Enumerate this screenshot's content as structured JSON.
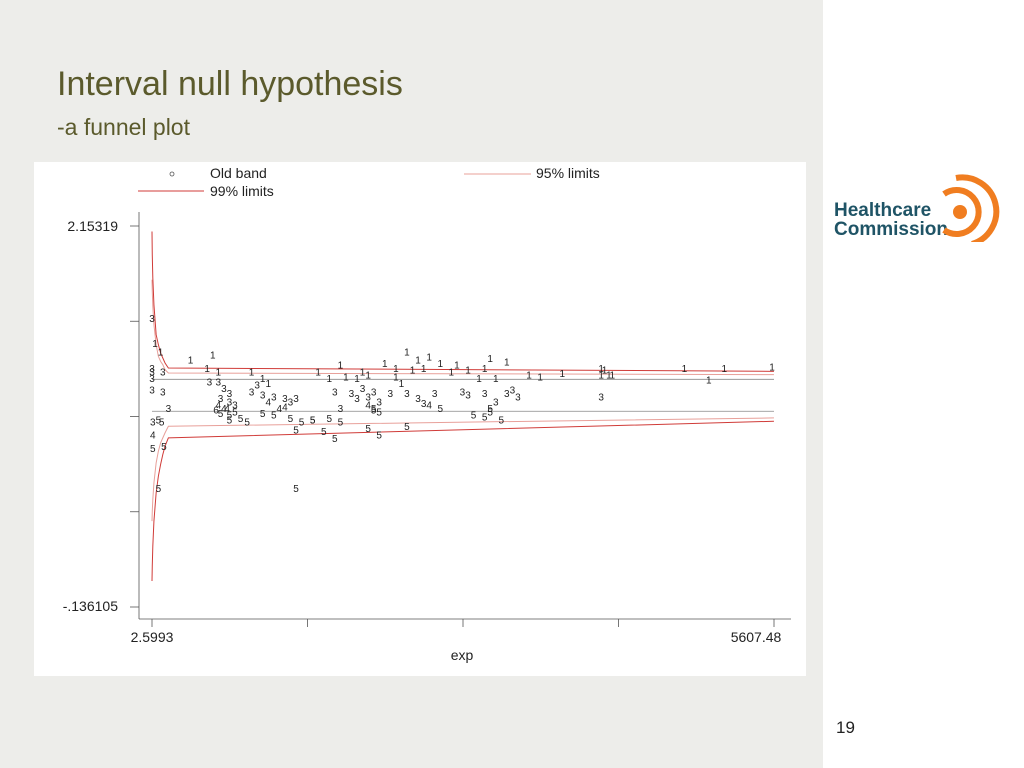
{
  "slide": {
    "title": "Interval null hypothesis",
    "subtitle": "-a funnel plot",
    "page_number": "19"
  },
  "logo": {
    "line1": "Healthcare",
    "line2": "Commission",
    "colors": {
      "text": "#1f5466",
      "ring": "#f07d20"
    }
  },
  "colors": {
    "title": "#5b5a2c",
    "background": "#ededea",
    "limit95": "#e8a09a",
    "limit99": "#d03b38",
    "band": "#888888"
  },
  "chart_data": {
    "type": "scatter",
    "marker_type": "text",
    "xlabel": "exp",
    "x_ticks": [
      "2.5993",
      "5607.48"
    ],
    "y_ticks": [
      "2.15319",
      "-.136105"
    ],
    "xlim": [
      2.5993,
      5607.48
    ],
    "ylim": [
      -0.136105,
      2.15319
    ],
    "legend": {
      "placement": "top",
      "entries": [
        {
          "label": "Old band",
          "marker": "circle"
        },
        {
          "label": "95% limits",
          "line": "limit95"
        },
        {
          "label": "99% limits",
          "line": "limit99"
        }
      ]
    },
    "band": {
      "upper": 1.232,
      "lower": 1.04
    },
    "limits95": {
      "x": [
        2.6,
        5,
        10,
        20,
        40,
        60,
        80,
        100,
        120,
        150,
        5607
      ],
      "upper": [
        1.83,
        1.76,
        1.67,
        1.56,
        1.44,
        1.37,
        1.34,
        1.32,
        1.29,
        1.27,
        1.26
      ],
      "lower": [
        0.38,
        0.44,
        0.51,
        0.61,
        0.73,
        0.8,
        0.85,
        0.88,
        0.91,
        0.95,
        1.0
      ]
    },
    "limits99": {
      "x": [
        2.6,
        5,
        10,
        20,
        40,
        60,
        80,
        100,
        120,
        150,
        5607
      ],
      "upper": [
        2.12,
        1.98,
        1.84,
        1.68,
        1.5,
        1.44,
        1.39,
        1.36,
        1.33,
        1.3,
        1.28
      ],
      "lower": [
        0.02,
        0.11,
        0.23,
        0.38,
        0.55,
        0.65,
        0.72,
        0.78,
        0.83,
        0.88,
        0.98
      ]
    },
    "points": [
      {
        "x": 2.6,
        "y": 1.6,
        "label": "3"
      },
      {
        "x": 2.6,
        "y": 1.3,
        "label": "3"
      },
      {
        "x": 2.6,
        "y": 1.28,
        "label": "3"
      },
      {
        "x": 2.6,
        "y": 1.24,
        "label": "3"
      },
      {
        "x": 2.6,
        "y": 1.17,
        "label": "3"
      },
      {
        "x": 30,
        "y": 1.45,
        "label": "1"
      },
      {
        "x": 80,
        "y": 1.4,
        "label": "1"
      },
      {
        "x": 100,
        "y": 1.28,
        "label": "3"
      },
      {
        "x": 100,
        "y": 1.16,
        "label": "3"
      },
      {
        "x": 150,
        "y": 1.06,
        "label": "3"
      },
      {
        "x": 10,
        "y": 0.98,
        "label": "3"
      },
      {
        "x": 60,
        "y": 0.99,
        "label": "5"
      },
      {
        "x": 90,
        "y": 0.98,
        "label": "5"
      },
      {
        "x": 10,
        "y": 0.9,
        "label": "4"
      },
      {
        "x": 10,
        "y": 0.82,
        "label": "5"
      },
      {
        "x": 110,
        "y": 0.83,
        "label": "5"
      },
      {
        "x": 60,
        "y": 0.58,
        "label": "5"
      },
      {
        "x": 350,
        "y": 1.35,
        "label": "1"
      },
      {
        "x": 500,
        "y": 1.3,
        "label": "1"
      },
      {
        "x": 550,
        "y": 1.38,
        "label": "1"
      },
      {
        "x": 600,
        "y": 1.28,
        "label": "1"
      },
      {
        "x": 520,
        "y": 1.22,
        "label": "3"
      },
      {
        "x": 600,
        "y": 1.22,
        "label": "3"
      },
      {
        "x": 650,
        "y": 1.18,
        "label": "3"
      },
      {
        "x": 700,
        "y": 1.15,
        "label": "3"
      },
      {
        "x": 620,
        "y": 1.12,
        "label": "3"
      },
      {
        "x": 700,
        "y": 1.1,
        "label": "3"
      },
      {
        "x": 750,
        "y": 1.08,
        "label": "3"
      },
      {
        "x": 600,
        "y": 1.08,
        "label": "4"
      },
      {
        "x": 650,
        "y": 1.06,
        "label": "4"
      },
      {
        "x": 680,
        "y": 1.06,
        "label": "4"
      },
      {
        "x": 620,
        "y": 1.03,
        "label": "5"
      },
      {
        "x": 580,
        "y": 1.05,
        "label": "6"
      },
      {
        "x": 700,
        "y": 1.02,
        "label": "5"
      },
      {
        "x": 750,
        "y": 1.04,
        "label": "5"
      },
      {
        "x": 800,
        "y": 1.0,
        "label": "5"
      },
      {
        "x": 860,
        "y": 0.98,
        "label": "5"
      },
      {
        "x": 700,
        "y": 0.99,
        "label": "5"
      },
      {
        "x": 900,
        "y": 1.28,
        "label": "1"
      },
      {
        "x": 1000,
        "y": 1.24,
        "label": "1"
      },
      {
        "x": 1050,
        "y": 1.21,
        "label": "1"
      },
      {
        "x": 950,
        "y": 1.2,
        "label": "3"
      },
      {
        "x": 900,
        "y": 1.16,
        "label": "3"
      },
      {
        "x": 1000,
        "y": 1.14,
        "label": "3"
      },
      {
        "x": 1100,
        "y": 1.13,
        "label": "3"
      },
      {
        "x": 1200,
        "y": 1.12,
        "label": "3"
      },
      {
        "x": 1250,
        "y": 1.1,
        "label": "3"
      },
      {
        "x": 1300,
        "y": 1.12,
        "label": "3"
      },
      {
        "x": 1050,
        "y": 1.1,
        "label": "4"
      },
      {
        "x": 1150,
        "y": 1.06,
        "label": "4"
      },
      {
        "x": 1200,
        "y": 1.07,
        "label": "4"
      },
      {
        "x": 1000,
        "y": 1.03,
        "label": "5"
      },
      {
        "x": 1100,
        "y": 1.02,
        "label": "5"
      },
      {
        "x": 1250,
        "y": 1.0,
        "label": "5"
      },
      {
        "x": 1350,
        "y": 0.98,
        "label": "5"
      },
      {
        "x": 1450,
        "y": 0.99,
        "label": "5"
      },
      {
        "x": 1550,
        "y": 0.92,
        "label": "5"
      },
      {
        "x": 1300,
        "y": 0.93,
        "label": "5"
      },
      {
        "x": 1450,
        "y": 0.99,
        "label": "5"
      },
      {
        "x": 1300,
        "y": 0.58,
        "label": "5"
      },
      {
        "x": 1500,
        "y": 1.28,
        "label": "1"
      },
      {
        "x": 1600,
        "y": 1.24,
        "label": "1"
      },
      {
        "x": 1700,
        "y": 1.32,
        "label": "1"
      },
      {
        "x": 1750,
        "y": 1.25,
        "label": "1"
      },
      {
        "x": 1850,
        "y": 1.24,
        "label": "1"
      },
      {
        "x": 1900,
        "y": 1.28,
        "label": "1"
      },
      {
        "x": 1950,
        "y": 1.26,
        "label": "1"
      },
      {
        "x": 1650,
        "y": 1.16,
        "label": "3"
      },
      {
        "x": 1800,
        "y": 1.15,
        "label": "3"
      },
      {
        "x": 1900,
        "y": 1.18,
        "label": "3"
      },
      {
        "x": 2000,
        "y": 1.16,
        "label": "3"
      },
      {
        "x": 1950,
        "y": 1.13,
        "label": "3"
      },
      {
        "x": 2050,
        "y": 1.1,
        "label": "3"
      },
      {
        "x": 1850,
        "y": 1.12,
        "label": "3"
      },
      {
        "x": 1700,
        "y": 1.06,
        "label": "3"
      },
      {
        "x": 2000,
        "y": 1.05,
        "label": "5"
      },
      {
        "x": 2050,
        "y": 1.04,
        "label": "5"
      },
      {
        "x": 1950,
        "y": 1.08,
        "label": "4"
      },
      {
        "x": 1600,
        "y": 1.0,
        "label": "5"
      },
      {
        "x": 1700,
        "y": 0.98,
        "label": "5"
      },
      {
        "x": 1950,
        "y": 0.94,
        "label": "5"
      },
      {
        "x": 1650,
        "y": 0.88,
        "label": "5"
      },
      {
        "x": 2050,
        "y": 0.9,
        "label": "5"
      },
      {
        "x": 2000,
        "y": 1.06,
        "label": "5"
      },
      {
        "x": 2100,
        "y": 1.33,
        "label": "1"
      },
      {
        "x": 2200,
        "y": 1.3,
        "label": "1"
      },
      {
        "x": 2300,
        "y": 1.4,
        "label": "1"
      },
      {
        "x": 2400,
        "y": 1.35,
        "label": "1"
      },
      {
        "x": 2350,
        "y": 1.29,
        "label": "1"
      },
      {
        "x": 2450,
        "y": 1.3,
        "label": "1"
      },
      {
        "x": 2200,
        "y": 1.25,
        "label": "1"
      },
      {
        "x": 2250,
        "y": 1.21,
        "label": "1"
      },
      {
        "x": 2500,
        "y": 1.37,
        "label": "1"
      },
      {
        "x": 2600,
        "y": 1.33,
        "label": "1"
      },
      {
        "x": 2150,
        "y": 1.15,
        "label": "3"
      },
      {
        "x": 2300,
        "y": 1.15,
        "label": "3"
      },
      {
        "x": 2400,
        "y": 1.12,
        "label": "3"
      },
      {
        "x": 2450,
        "y": 1.09,
        "label": "3"
      },
      {
        "x": 2550,
        "y": 1.15,
        "label": "3"
      },
      {
        "x": 2500,
        "y": 1.08,
        "label": "4"
      },
      {
        "x": 2600,
        "y": 1.06,
        "label": "5"
      },
      {
        "x": 2300,
        "y": 0.95,
        "label": "5"
      },
      {
        "x": 2700,
        "y": 1.28,
        "label": "1"
      },
      {
        "x": 2750,
        "y": 1.32,
        "label": "1"
      },
      {
        "x": 2850,
        "y": 1.29,
        "label": "1"
      },
      {
        "x": 3000,
        "y": 1.3,
        "label": "1"
      },
      {
        "x": 3050,
        "y": 1.36,
        "label": "1"
      },
      {
        "x": 2950,
        "y": 1.24,
        "label": "1"
      },
      {
        "x": 3100,
        "y": 1.24,
        "label": "1"
      },
      {
        "x": 2800,
        "y": 1.16,
        "label": "3"
      },
      {
        "x": 2850,
        "y": 1.14,
        "label": "3"
      },
      {
        "x": 3000,
        "y": 1.15,
        "label": "3"
      },
      {
        "x": 3100,
        "y": 1.1,
        "label": "3"
      },
      {
        "x": 2900,
        "y": 1.02,
        "label": "5"
      },
      {
        "x": 3050,
        "y": 1.06,
        "label": "5"
      },
      {
        "x": 3000,
        "y": 1.01,
        "label": "5"
      },
      {
        "x": 3150,
        "y": 0.99,
        "label": "5"
      },
      {
        "x": 3050,
        "y": 1.04,
        "label": "5"
      },
      {
        "x": 3200,
        "y": 1.15,
        "label": "3"
      },
      {
        "x": 3250,
        "y": 1.17,
        "label": "3"
      },
      {
        "x": 3300,
        "y": 1.13,
        "label": "3"
      },
      {
        "x": 3200,
        "y": 1.34,
        "label": "1"
      },
      {
        "x": 3400,
        "y": 1.26,
        "label": "1"
      },
      {
        "x": 3500,
        "y": 1.25,
        "label": "1"
      },
      {
        "x": 3700,
        "y": 1.27,
        "label": "1"
      },
      {
        "x": 4050,
        "y": 1.3,
        "label": "1"
      },
      {
        "x": 4080,
        "y": 1.29,
        "label": "1"
      },
      {
        "x": 4050,
        "y": 1.26,
        "label": "1"
      },
      {
        "x": 4150,
        "y": 1.26,
        "label": "1"
      },
      {
        "x": 4120,
        "y": 1.26,
        "label": "1"
      },
      {
        "x": 4050,
        "y": 1.13,
        "label": "3"
      },
      {
        "x": 4800,
        "y": 1.3,
        "label": "1"
      },
      {
        "x": 5020,
        "y": 1.23,
        "label": "1"
      },
      {
        "x": 5160,
        "y": 1.3,
        "label": "1"
      },
      {
        "x": 5590,
        "y": 1.31,
        "label": "1"
      }
    ]
  }
}
